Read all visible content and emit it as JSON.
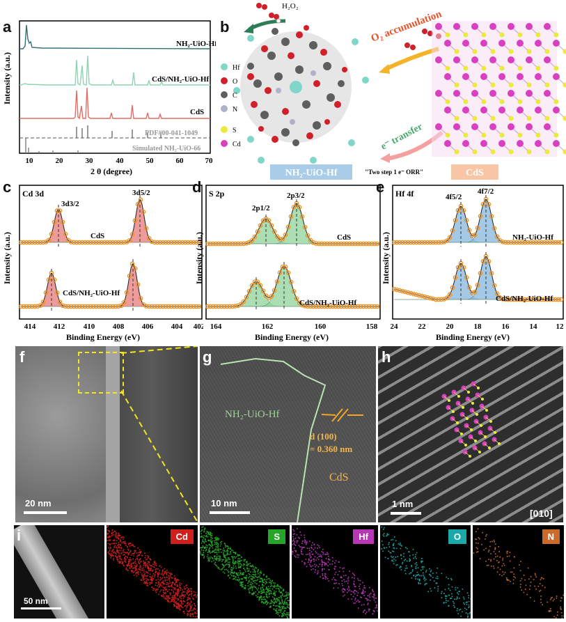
{
  "panel_labels": {
    "a": "a",
    "b": "b",
    "c": "c",
    "d": "d",
    "e": "e",
    "f": "f",
    "g": "g",
    "h": "h",
    "i": "i"
  },
  "colors": {
    "nh2": "#2f6f72",
    "cds_nh2": "#8fd3b3",
    "cds": "#e36b64",
    "ref": "#555555",
    "sim": "#8a8a8a",
    "fit_orange": "#f3901e",
    "peak_red": "#e87a7a",
    "peak_green": "#8fd49a",
    "peak_blue": "#86b8e0"
  },
  "panel_a": {
    "ylabel": "Intensity (a.u.)",
    "xlabel": "2 θ (degree)",
    "ticks": [
      "10",
      "20",
      "30",
      "40",
      "50",
      "60",
      "70"
    ],
    "labels": {
      "nh2": "NH₂-UiO-Hf",
      "cds_nh2": "CdS/NH₂-UiO-Hf",
      "cds": "CdS",
      "pdf": "PDF#00-041-1049",
      "sim": "Simulated NH₂-UiO-66"
    }
  },
  "panel_b": {
    "h2o2": "H₂O₂",
    "o2_accumulation": "O₂ accumulation",
    "e_transfer": "e⁻ transfer",
    "two_step": "\"Two step 1 e⁻ ORR\"",
    "mof_label": "NH₂-UiO-Hf",
    "cds_label": "CdS",
    "legend": [
      {
        "sym": "Hf",
        "color": "#7fd6c9"
      },
      {
        "sym": "O",
        "color": "#d0202a"
      },
      {
        "sym": "C",
        "color": "#5e5e5e"
      },
      {
        "sym": "N",
        "color": "#b0b0cc"
      },
      {
        "sym": "S",
        "color": "#ecea3c"
      },
      {
        "sym": "Cd",
        "color": "#d93fc0"
      }
    ]
  },
  "panel_c": {
    "title": "Cd 3d",
    "ylabel": "Intensity (a.u.)",
    "xlabel": "Binding Energy (eV)",
    "ticks": [
      "414",
      "412",
      "410",
      "408",
      "406",
      "404",
      "402"
    ],
    "peak1": "3d3/2",
    "peak2": "3d5/2",
    "top": "CdS",
    "bottom": "CdS/NH₂-UiO-Hf"
  },
  "panel_d": {
    "title": "S 2p",
    "ylabel": "Intensity (a.u.)",
    "xlabel": "Binding Energy (eV)",
    "ticks": [
      "164",
      "162",
      "160",
      "158"
    ],
    "peak1": "2p1/2",
    "peak2": "2p3/2",
    "top": "CdS",
    "bottom": "CdS/NH₂-UiO-Hf"
  },
  "panel_e": {
    "title": "Hf 4f",
    "ylabel": "Intensity (a.u.)",
    "xlabel": "Binding Energy (eV)",
    "ticks": [
      "24",
      "22",
      "20",
      "18",
      "16",
      "14",
      "12"
    ],
    "peak1": "4f5/2",
    "peak2": "4f7/2",
    "top": "NH₂-UiO-Hf",
    "bottom": "CdS/NH₂-UiO-Hf"
  },
  "panel_f": {
    "scale": "20 nm"
  },
  "panel_g": {
    "scale": "10 nm",
    "mof": "NH₂-UiO-Hf",
    "dspacing1": "d (100)",
    "dspacing2": "= 0.360 nm",
    "cds": "CdS"
  },
  "panel_h": {
    "scale": "1 nm",
    "zone": "[010]"
  },
  "panel_i": {
    "scale": "50 nm",
    "elements": [
      {
        "name": "Cd",
        "color": "#d0201e"
      },
      {
        "name": "S",
        "color": "#26a629"
      },
      {
        "name": "Hf",
        "color": "#b836b5"
      },
      {
        "name": "O",
        "color": "#1aa9a9"
      },
      {
        "name": "N",
        "color": "#cc6a2a"
      }
    ]
  }
}
